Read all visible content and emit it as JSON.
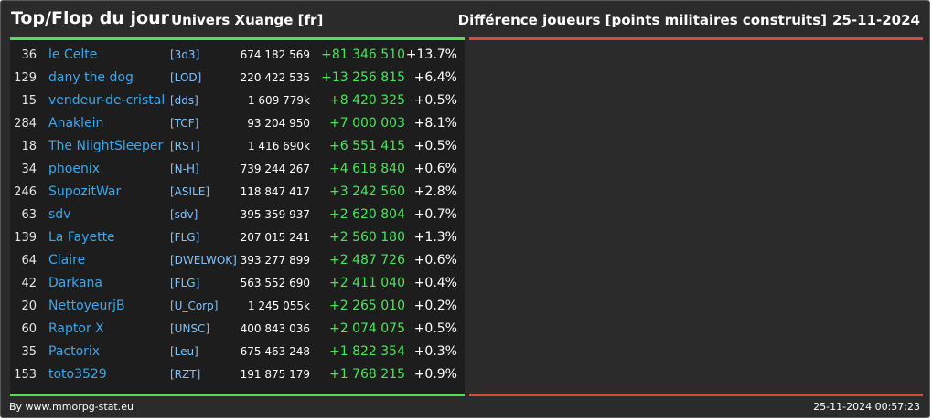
{
  "header": {
    "title": "Top/Flop du jour",
    "universe": "Univers Xuange [fr]",
    "metric": "Différence joueurs [points militaires construits]",
    "date": "25-11-2024"
  },
  "rows": [
    {
      "rank": "36",
      "name": "le Celte",
      "alliance": "[3d3]",
      "points": "674 182 569",
      "delta": "+81 346 510",
      "pct": "+13.7%"
    },
    {
      "rank": "129",
      "name": "dany the dog",
      "alliance": "[LOD]",
      "points": "220 422 535",
      "delta": "+13 256 815",
      "pct": "+6.4%"
    },
    {
      "rank": "15",
      "name": "vendeur-de-cristal",
      "alliance": "[dds]",
      "points": "1 609 779k",
      "delta": "+8 420 325",
      "pct": "+0.5%"
    },
    {
      "rank": "284",
      "name": "Anaklein",
      "alliance": "[TCF]",
      "points": "93 204 950",
      "delta": "+7 000 003",
      "pct": "+8.1%"
    },
    {
      "rank": "18",
      "name": "The NiightSleeper",
      "alliance": "[RST]",
      "points": "1 416 690k",
      "delta": "+6 551 415",
      "pct": "+0.5%"
    },
    {
      "rank": "34",
      "name": "phoenix",
      "alliance": "[N-H]",
      "points": "739 244 267",
      "delta": "+4 618 840",
      "pct": "+0.6%"
    },
    {
      "rank": "246",
      "name": "SupozitWar",
      "alliance": "[ASILE]",
      "points": "118 847 417",
      "delta": "+3 242 560",
      "pct": "+2.8%"
    },
    {
      "rank": "63",
      "name": "sdv",
      "alliance": "[sdv]",
      "points": "395 359 937",
      "delta": "+2 620 804",
      "pct": "+0.7%"
    },
    {
      "rank": "139",
      "name": "La Fayette",
      "alliance": "[FLG]",
      "points": "207 015 241",
      "delta": "+2 560 180",
      "pct": "+1.3%"
    },
    {
      "rank": "64",
      "name": "Claire",
      "alliance": "[DWELWOK]",
      "points": "393 277 899",
      "delta": "+2 487 726",
      "pct": "+0.6%"
    },
    {
      "rank": "42",
      "name": "Darkana",
      "alliance": "[FLG]",
      "points": "563 552 690",
      "delta": "+2 411 040",
      "pct": "+0.4%"
    },
    {
      "rank": "20",
      "name": "NettoyeurjB",
      "alliance": "[U_Corp]",
      "points": "1 245 055k",
      "delta": "+2 265 010",
      "pct": "+0.2%"
    },
    {
      "rank": "60",
      "name": "Raptor X",
      "alliance": "[UNSC]",
      "points": "400 843 036",
      "delta": "+2 074 075",
      "pct": "+0.5%"
    },
    {
      "rank": "35",
      "name": "Pactorix",
      "alliance": "[Leu]",
      "points": "675 463 248",
      "delta": "+1 822 354",
      "pct": "+0.3%"
    },
    {
      "rank": "153",
      "name": "toto3529",
      "alliance": "[RZT]",
      "points": "191 875 179",
      "delta": "+1 768 215",
      "pct": "+0.9%"
    }
  ],
  "footer": {
    "source": "By www.mmorpg-stat.eu",
    "timestamp": "25-11-2024 00:57:23"
  },
  "colors": {
    "top_accent": "#4ee05a",
    "flop_accent": "#d84a43",
    "player_link": "#3aa7f0",
    "gain": "#46e85a"
  }
}
